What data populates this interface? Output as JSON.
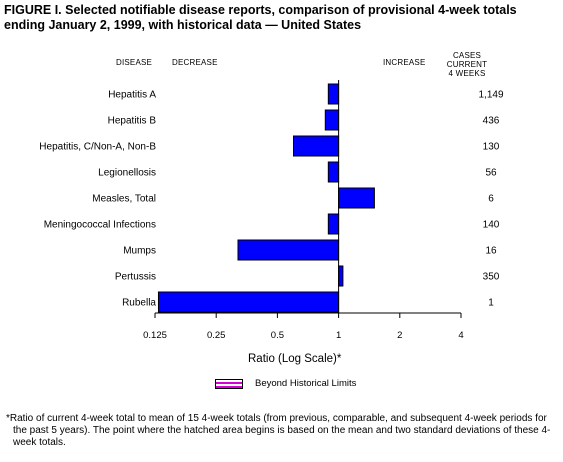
{
  "title": "FIGURE I. Selected notifiable disease reports, comparison of provisional 4-week totals ending January 2, 1999, with historical data — United States",
  "headers": {
    "disease": "DISEASE",
    "decrease": "DECREASE",
    "increase": "INCREASE",
    "cases_line1": "CASES CURRENT",
    "cases_line2": "4 WEEKS"
  },
  "legend": {
    "label": "Beyond Historical Limits"
  },
  "footnote": "*Ratio of current 4-week total to mean of 15 4-week totals (from previous, comparable, and subsequent 4-week periods for the past 5 years). The point where the hatched area begins is based on the mean and two standard deviations of these 4-week totals.",
  "colors": {
    "bar": "#0000ff",
    "hatch": "#d400d4"
  },
  "chart_data": {
    "type": "bar",
    "orientation": "horizontal",
    "scale": "log2",
    "xlabel": "Ratio (Log Scale)*",
    "xlim": [
      0.125,
      4
    ],
    "baseline": 1,
    "ticks": [
      "0.125",
      "0.25",
      "0.5",
      "1",
      "2",
      "4"
    ],
    "tick_values": [
      0.125,
      0.25,
      0.5,
      1,
      2,
      4
    ],
    "categories": [
      "Hepatitis A",
      "Hepatitis B",
      "Hepatitis, C/Non-A, Non-B",
      "Legionellosis",
      "Measles, Total",
      "Meningococcal Infections",
      "Mumps",
      "Pertussis",
      "Rubella"
    ],
    "values": [
      0.89,
      0.86,
      0.6,
      0.89,
      1.5,
      0.89,
      0.32,
      1.05,
      0.13
    ],
    "cases": [
      "1,149",
      "436",
      "130",
      "56",
      "6",
      "140",
      "16",
      "350",
      "1"
    ]
  }
}
